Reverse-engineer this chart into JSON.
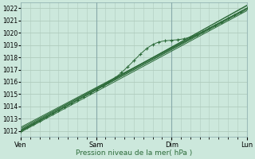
{
  "title": "",
  "xlabel": "Pression niveau de la mer( hPa )",
  "ylabel": "",
  "bg_color": "#cce8dc",
  "plot_bg_color": "#cce8dc",
  "grid_color": "#b0ccbe",
  "line_color": "#2d6b3a",
  "xlim": [
    0,
    72
  ],
  "ylim": [
    1011.5,
    1022.5
  ],
  "yticks": [
    1012,
    1013,
    1014,
    1015,
    1016,
    1017,
    1018,
    1019,
    1020,
    1021,
    1022
  ],
  "xtick_labels": [
    "Ven",
    "Sam",
    "Dim",
    "Lun"
  ],
  "xtick_positions": [
    0,
    24,
    48,
    72
  ],
  "figsize": [
    3.2,
    2.0
  ],
  "dpi": 100
}
